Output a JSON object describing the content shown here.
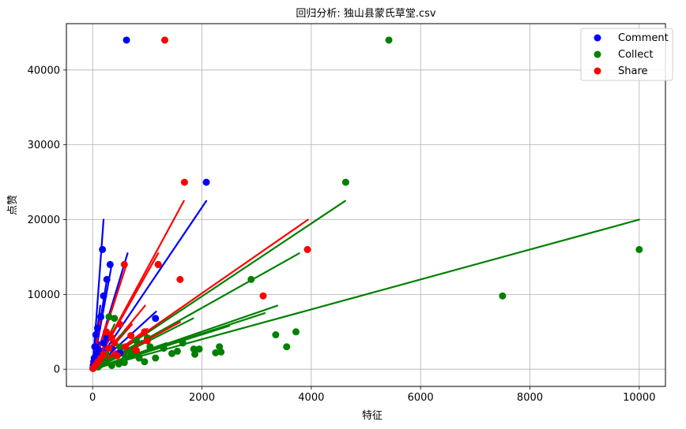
{
  "chart_data": {
    "type": "scatter",
    "title": "回归分析: 独山县蒙氏草堂.csv",
    "xlabel": "特征",
    "ylabel": "点赞",
    "xlim": [
      -480,
      10480
    ],
    "ylim": [
      -2300,
      46200
    ],
    "xticks": [
      0,
      2000,
      4000,
      6000,
      8000,
      10000
    ],
    "yticks": [
      0,
      10000,
      20000,
      30000,
      40000
    ],
    "grid": true,
    "legend_position": "top-right",
    "series": [
      {
        "name": "Comment",
        "color": "#0000ff",
        "points": [
          [
            620,
            44000
          ],
          [
            2080,
            25000
          ],
          [
            180,
            16000
          ],
          [
            320,
            14000
          ],
          [
            260,
            12000
          ],
          [
            200,
            9800
          ],
          [
            1150,
            6800
          ],
          [
            150,
            7000
          ],
          [
            90,
            5500
          ],
          [
            60,
            4600
          ],
          [
            40,
            3000
          ],
          [
            110,
            2600
          ],
          [
            70,
            2000
          ],
          [
            30,
            1500
          ],
          [
            20,
            1000
          ],
          [
            50,
            800
          ],
          [
            10,
            500
          ],
          [
            200,
            3500
          ],
          [
            260,
            4200
          ],
          [
            350,
            2800
          ],
          [
            500,
            2200
          ],
          [
            30,
            300
          ],
          [
            5,
            100
          ],
          [
            140,
            1800
          ]
        ],
        "regression_lines": [
          [
            [
              0,
              0
            ],
            [
              200,
              20000
            ]
          ],
          [
            [
              0,
              0
            ],
            [
              2080,
              22500
            ]
          ],
          [
            [
              0,
              0
            ],
            [
              640,
              15500
            ]
          ],
          [
            [
              0,
              0
            ],
            [
              350,
              14000
            ]
          ],
          [
            [
              0,
              0
            ],
            [
              250,
              11500
            ]
          ],
          [
            [
              0,
              0
            ],
            [
              1160,
              7700
            ]
          ],
          [
            [
              0,
              0
            ],
            [
              140,
              8500
            ]
          ]
        ]
      },
      {
        "name": "Collect",
        "color": "#008000",
        "points": [
          [
            5420,
            44000
          ],
          [
            4630,
            25000
          ],
          [
            10000,
            16000
          ],
          [
            7500,
            9800
          ],
          [
            1200,
            14000
          ],
          [
            2900,
            12000
          ],
          [
            3350,
            4600
          ],
          [
            3720,
            5000
          ],
          [
            3550,
            3000
          ],
          [
            2320,
            3000
          ],
          [
            2350,
            2300
          ],
          [
            1870,
            2000
          ],
          [
            1850,
            2700
          ],
          [
            1950,
            2700
          ],
          [
            2250,
            2200
          ],
          [
            1450,
            2100
          ],
          [
            1550,
            2400
          ],
          [
            1650,
            3500
          ],
          [
            1150,
            1500
          ],
          [
            950,
            1000
          ],
          [
            850,
            1500
          ],
          [
            700,
            1800
          ],
          [
            580,
            900
          ],
          [
            480,
            700
          ],
          [
            350,
            500
          ],
          [
            400,
            6800
          ],
          [
            300,
            7000
          ],
          [
            250,
            2000
          ],
          [
            500,
            3000
          ],
          [
            650,
            2500
          ],
          [
            150,
            600
          ],
          [
            100,
            300
          ],
          [
            200,
            1200
          ],
          [
            1050,
            3000
          ],
          [
            1300,
            2800
          ],
          [
            800,
            3800
          ],
          [
            1000,
            4200
          ],
          [
            750,
            2200
          ],
          [
            600,
            1600
          ]
        ],
        "regression_lines": [
          [
            [
              0,
              0
            ],
            [
              10000,
              20000
            ]
          ],
          [
            [
              0,
              0
            ],
            [
              4620,
              22500
            ]
          ],
          [
            [
              0,
              0
            ],
            [
              3380,
              8500
            ]
          ],
          [
            [
              0,
              0
            ],
            [
              3780,
              15500
            ]
          ],
          [
            [
              0,
              0
            ],
            [
              1840,
              6800
            ]
          ],
          [
            [
              0,
              0
            ],
            [
              2500,
              5800
            ]
          ],
          [
            [
              0,
              0
            ],
            [
              3150,
              7500
            ]
          ],
          [
            [
              0,
              0
            ],
            [
              1350,
              3500
            ]
          ]
        ]
      },
      {
        "name": "Share",
        "color": "#ff0000",
        "points": [
          [
            1320,
            44000
          ],
          [
            1680,
            25000
          ],
          [
            3930,
            16000
          ],
          [
            3120,
            9800
          ],
          [
            1600,
            12000
          ],
          [
            580,
            14000
          ],
          [
            1200,
            14000
          ],
          [
            950,
            5000
          ],
          [
            700,
            4500
          ],
          [
            500,
            6000
          ],
          [
            400,
            3500
          ],
          [
            300,
            2800
          ],
          [
            200,
            2000
          ],
          [
            150,
            1500
          ],
          [
            100,
            1000
          ],
          [
            60,
            600
          ],
          [
            30,
            300
          ],
          [
            10,
            100
          ],
          [
            250,
            5000
          ],
          [
            350,
            4200
          ],
          [
            600,
            3000
          ],
          [
            800,
            2500
          ],
          [
            1000,
            3800
          ],
          [
            450,
            1800
          ]
        ],
        "regression_lines": [
          [
            [
              0,
              0
            ],
            [
              1670,
              22500
            ]
          ],
          [
            [
              0,
              0
            ],
            [
              3940,
              20000
            ]
          ],
          [
            [
              0,
              0
            ],
            [
              1200,
              15500
            ]
          ],
          [
            [
              0,
              0
            ],
            [
              1600,
              6300
            ]
          ],
          [
            [
              0,
              0
            ],
            [
              960,
              8500
            ]
          ],
          [
            [
              0,
              0
            ],
            [
              620,
              14000
            ]
          ],
          [
            [
              0,
              0
            ],
            [
              440,
              10000
            ]
          ],
          [
            [
              0,
              0
            ],
            [
              1000,
              5400
            ]
          ],
          [
            [
              0,
              0
            ],
            [
              720,
              6000
            ]
          ]
        ]
      }
    ]
  }
}
